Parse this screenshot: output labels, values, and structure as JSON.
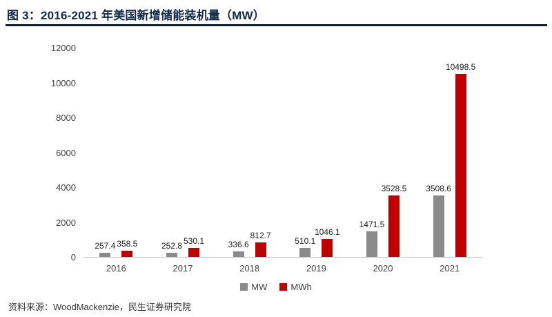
{
  "header": {
    "title": "图 3：2016-2021 年美国新增储能装机量（MW）"
  },
  "footer": {
    "source": "资料来源：WoodMackenzie，民生证券研究院"
  },
  "colors": {
    "title": "#13294b",
    "rule": "#0d1f3c",
    "mw_bar": "#8a8a8a",
    "mwh_bar": "#c00000"
  },
  "chart_data": {
    "type": "bar",
    "title": "图 3：2016-2021 年美国新增储能装机量（MW）",
    "categories": [
      "2016",
      "2017",
      "2018",
      "2019",
      "2020",
      "2021"
    ],
    "series": [
      {
        "name": "MW",
        "color": "#8a8a8a",
        "values": [
          257.4,
          252.8,
          336.6,
          510.1,
          1471.5,
          3508.6
        ]
      },
      {
        "name": "MWh",
        "color": "#c00000",
        "values": [
          358.5,
          530.1,
          812.7,
          1046.1,
          3528.5,
          10498.5
        ]
      }
    ],
    "xlabel": "",
    "ylabel": "",
    "ylim": [
      0,
      12000
    ],
    "yticks": [
      0,
      2000,
      4000,
      6000,
      8000,
      10000,
      12000
    ],
    "grid": false,
    "legend_position": "bottom",
    "data_labels": true
  }
}
